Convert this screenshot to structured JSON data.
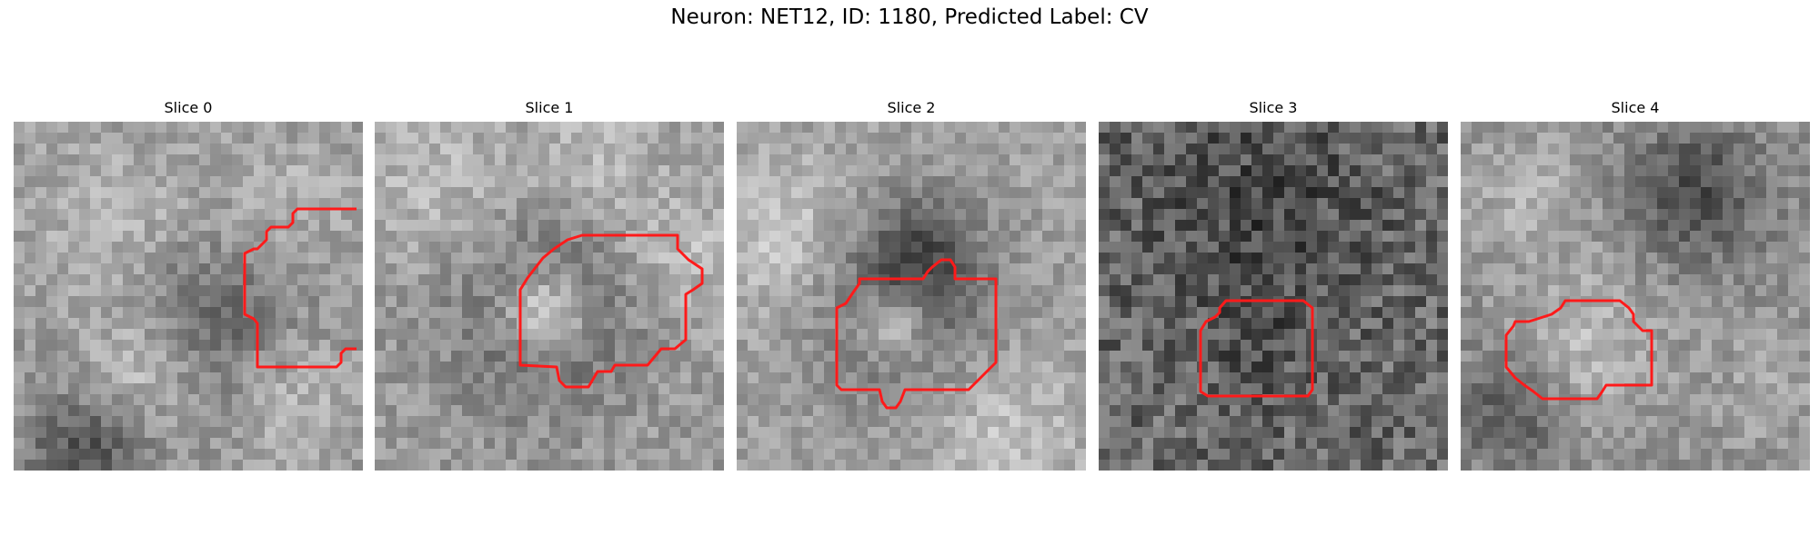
{
  "figure": {
    "title": "Neuron: NET12, ID: 1180, Predicted Label: CV",
    "outline_color": "#ff1a1a",
    "colormap": "grayscale"
  },
  "slices": [
    {
      "label": "Slice 0"
    },
    {
      "label": "Slice 1"
    },
    {
      "label": "Slice 2"
    },
    {
      "label": "Slice 3"
    },
    {
      "label": "Slice 4"
    }
  ]
}
